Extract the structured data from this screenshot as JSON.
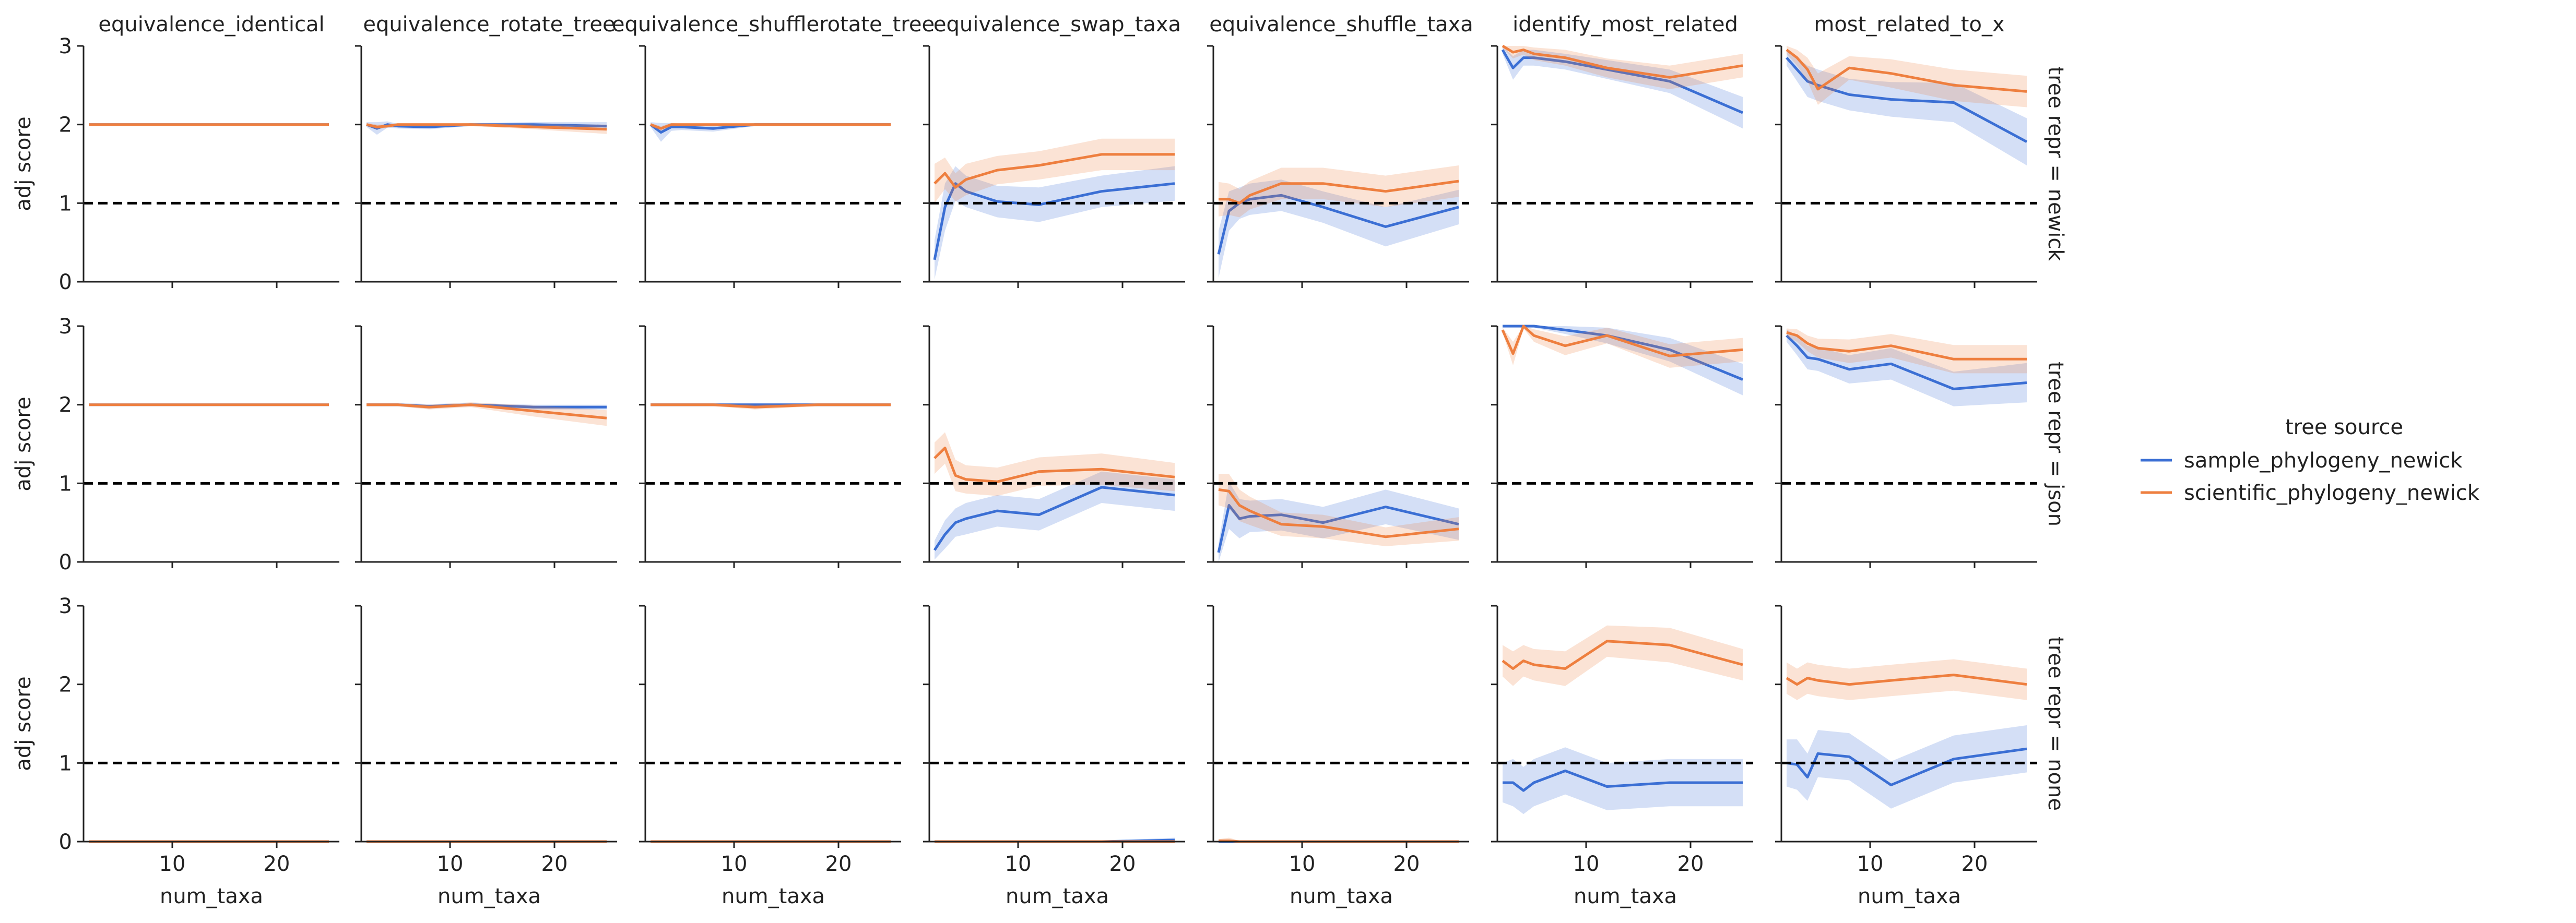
{
  "chart_data": {
    "type": "line",
    "layout": "facet-grid",
    "columns": [
      "equivalence_identical",
      "equivalence_rotate_tree",
      "equivalence_shufflerotate_tree",
      "equivalence_swap_taxa",
      "equivalence_shuffle_taxa",
      "identify_most_related",
      "most_related_to_x"
    ],
    "rows": [
      "tree repr = newick",
      "tree repr = json",
      "tree repr = none"
    ],
    "xlabel": "num_taxa",
    "ylabel": "adj score",
    "xlim": [
      1.5,
      26
    ],
    "ylim": [
      0,
      3
    ],
    "xticks": [
      10,
      20
    ],
    "yticks": [
      0,
      1,
      2,
      3
    ],
    "reference_line": {
      "y": 1,
      "style": "dashed",
      "color": "#000000"
    },
    "legend": {
      "title": "tree source",
      "position": "right",
      "entries": [
        "sample_phylogeny_newick",
        "scientific_phylogeny_newick"
      ]
    },
    "colors": {
      "sample_phylogeny_newick": "#3b6fd4",
      "scientific_phylogeny_newick": "#ee7f3f"
    },
    "grid": false,
    "x": [
      2,
      3,
      4,
      5,
      8,
      12,
      18,
      25
    ],
    "panels": [
      [
        {
          "sample": [
            2.0,
            2.0,
            2.0,
            2.0,
            2.0,
            2.0,
            2.0,
            2.0
          ],
          "sample_band": [
            0,
            0,
            0,
            0,
            0,
            0,
            0,
            0
          ],
          "scientific": [
            2.0,
            2.0,
            2.0,
            2.0,
            2.0,
            2.0,
            2.0,
            2.0
          ],
          "scientific_band": [
            0,
            0,
            0,
            0,
            0,
            0,
            0,
            0
          ]
        },
        {
          "sample": [
            2.0,
            1.95,
            2.0,
            1.98,
            1.97,
            2.0,
            2.0,
            1.98
          ],
          "sample_band": [
            0.03,
            0.08,
            0.04,
            0.03,
            0.03,
            0.02,
            0.03,
            0.05
          ],
          "scientific": [
            2.0,
            1.97,
            1.98,
            2.0,
            2.0,
            2.0,
            1.97,
            1.94
          ],
          "scientific_band": [
            0.02,
            0.03,
            0.02,
            0.02,
            0.02,
            0.02,
            0.03,
            0.06
          ]
        },
        {
          "sample": [
            2.0,
            1.9,
            1.97,
            1.97,
            1.95,
            2.0,
            2.0,
            2.0
          ],
          "sample_band": [
            0.03,
            0.12,
            0.05,
            0.04,
            0.04,
            0.02,
            0.02,
            0.02
          ],
          "scientific": [
            2.0,
            1.95,
            2.0,
            2.0,
            2.0,
            2.0,
            2.0,
            2.0
          ],
          "scientific_band": [
            0.02,
            0.03,
            0.02,
            0.02,
            0.02,
            0.02,
            0.02,
            0.02
          ]
        },
        {
          "sample": [
            0.28,
            0.95,
            1.25,
            1.15,
            1.02,
            0.98,
            1.15,
            1.25
          ],
          "sample_band": [
            0.25,
            0.3,
            0.22,
            0.2,
            0.2,
            0.22,
            0.2,
            0.22
          ],
          "scientific": [
            1.25,
            1.38,
            1.2,
            1.3,
            1.42,
            1.48,
            1.62,
            1.62
          ],
          "scientific_band": [
            0.25,
            0.2,
            0.18,
            0.2,
            0.18,
            0.18,
            0.2,
            0.2
          ]
        },
        {
          "sample": [
            0.35,
            0.9,
            1.0,
            1.05,
            1.1,
            0.95,
            0.7,
            0.95
          ],
          "sample_band": [
            0.3,
            0.25,
            0.2,
            0.2,
            0.2,
            0.2,
            0.25,
            0.22
          ],
          "scientific": [
            1.05,
            1.05,
            1.0,
            1.1,
            1.25,
            1.25,
            1.15,
            1.28
          ],
          "scientific_band": [
            0.22,
            0.2,
            0.18,
            0.18,
            0.2,
            0.2,
            0.2,
            0.2
          ]
        },
        {
          "sample": [
            2.95,
            2.72,
            2.85,
            2.85,
            2.8,
            2.7,
            2.55,
            2.15
          ],
          "sample_band": [
            0.05,
            0.15,
            0.1,
            0.1,
            0.1,
            0.12,
            0.15,
            0.2
          ],
          "scientific": [
            3.0,
            2.92,
            2.95,
            2.9,
            2.85,
            2.72,
            2.6,
            2.75
          ],
          "scientific_band": [
            0.03,
            0.08,
            0.06,
            0.08,
            0.1,
            0.12,
            0.15,
            0.15
          ]
        },
        {
          "sample": [
            2.85,
            2.7,
            2.55,
            2.5,
            2.38,
            2.32,
            2.28,
            1.78
          ],
          "sample_band": [
            0.1,
            0.15,
            0.2,
            0.2,
            0.2,
            0.22,
            0.25,
            0.3
          ],
          "scientific": [
            2.95,
            2.85,
            2.7,
            2.45,
            2.72,
            2.65,
            2.5,
            2.42
          ],
          "scientific_band": [
            0.05,
            0.1,
            0.15,
            0.2,
            0.15,
            0.18,
            0.2,
            0.2
          ]
        }
      ],
      [
        {
          "sample": [
            2.0,
            2.0,
            2.0,
            2.0,
            2.0,
            2.0,
            2.0,
            2.0
          ],
          "sample_band": [
            0,
            0,
            0,
            0,
            0,
            0,
            0,
            0
          ],
          "scientific": [
            2.0,
            2.0,
            2.0,
            2.0,
            2.0,
            2.0,
            2.0,
            2.0
          ],
          "scientific_band": [
            0,
            0,
            0,
            0,
            0,
            0,
            0,
            0
          ]
        },
        {
          "sample": [
            2.0,
            2.0,
            2.0,
            2.0,
            1.98,
            2.0,
            1.97,
            1.97
          ],
          "sample_band": [
            0.02,
            0.02,
            0.02,
            0.02,
            0.03,
            0.02,
            0.03,
            0.03
          ],
          "scientific": [
            2.0,
            2.0,
            2.0,
            2.0,
            1.97,
            2.0,
            1.92,
            1.83
          ],
          "scientific_band": [
            0.02,
            0.02,
            0.02,
            0.02,
            0.03,
            0.03,
            0.07,
            0.1
          ]
        },
        {
          "sample": [
            2.0,
            2.0,
            2.0,
            2.0,
            2.0,
            2.0,
            2.0,
            2.0
          ],
          "sample_band": [
            0.02,
            0.02,
            0.02,
            0.02,
            0.02,
            0.02,
            0.02,
            0.02
          ],
          "scientific": [
            2.0,
            2.0,
            2.0,
            2.0,
            2.0,
            1.97,
            2.0,
            2.0
          ],
          "scientific_band": [
            0.02,
            0.02,
            0.02,
            0.02,
            0.02,
            0.03,
            0.02,
            0.02
          ]
        },
        {
          "sample": [
            0.15,
            0.35,
            0.5,
            0.55,
            0.65,
            0.6,
            0.95,
            0.85
          ],
          "sample_band": [
            0.12,
            0.18,
            0.18,
            0.2,
            0.2,
            0.2,
            0.2,
            0.2
          ],
          "scientific": [
            1.32,
            1.45,
            1.1,
            1.05,
            1.02,
            1.15,
            1.18,
            1.08
          ],
          "scientific_band": [
            0.2,
            0.2,
            0.2,
            0.18,
            0.18,
            0.18,
            0.2,
            0.18
          ]
        },
        {
          "sample": [
            0.12,
            0.72,
            0.55,
            0.58,
            0.6,
            0.5,
            0.7,
            0.48
          ],
          "sample_band": [
            0.12,
            0.3,
            0.25,
            0.2,
            0.2,
            0.2,
            0.22,
            0.2
          ],
          "scientific": [
            0.92,
            0.9,
            0.72,
            0.65,
            0.48,
            0.45,
            0.32,
            0.42
          ],
          "scientific_band": [
            0.2,
            0.22,
            0.2,
            0.18,
            0.15,
            0.15,
            0.12,
            0.15
          ]
        },
        {
          "sample": [
            3.0,
            3.0,
            3.0,
            3.0,
            2.95,
            2.88,
            2.7,
            2.32
          ],
          "sample_band": [
            0.02,
            0.02,
            0.02,
            0.02,
            0.05,
            0.1,
            0.15,
            0.2
          ],
          "scientific": [
            2.95,
            2.65,
            3.0,
            2.88,
            2.75,
            2.88,
            2.62,
            2.7
          ],
          "scientific_band": [
            0.03,
            0.15,
            0.03,
            0.08,
            0.12,
            0.1,
            0.15,
            0.15
          ]
        },
        {
          "sample": [
            2.88,
            2.75,
            2.6,
            2.58,
            2.45,
            2.52,
            2.2,
            2.28
          ],
          "sample_band": [
            0.08,
            0.12,
            0.15,
            0.15,
            0.18,
            0.2,
            0.22,
            0.25
          ],
          "scientific": [
            2.92,
            2.88,
            2.78,
            2.72,
            2.68,
            2.75,
            2.58,
            2.58
          ],
          "scientific_band": [
            0.05,
            0.08,
            0.1,
            0.12,
            0.15,
            0.15,
            0.18,
            0.18
          ]
        }
      ],
      [
        {
          "sample": [
            0,
            0,
            0,
            0,
            0,
            0,
            0,
            0
          ],
          "sample_band": [
            0,
            0,
            0,
            0,
            0,
            0,
            0,
            0
          ],
          "scientific": [
            0,
            0,
            0,
            0,
            0,
            0,
            0,
            0
          ],
          "scientific_band": [
            0,
            0,
            0,
            0,
            0,
            0,
            0,
            0
          ]
        },
        {
          "sample": [
            0,
            0,
            0,
            0,
            0,
            0,
            0,
            0
          ],
          "sample_band": [
            0,
            0,
            0,
            0,
            0,
            0,
            0,
            0
          ],
          "scientific": [
            0,
            0,
            0,
            0,
            0,
            0,
            0,
            0
          ],
          "scientific_band": [
            0,
            0,
            0,
            0,
            0,
            0,
            0,
            0
          ]
        },
        {
          "sample": [
            0,
            0,
            0,
            0,
            0,
            0,
            0,
            0
          ],
          "sample_band": [
            0,
            0,
            0,
            0,
            0,
            0,
            0,
            0
          ],
          "scientific": [
            0,
            0,
            0,
            0,
            0,
            0,
            0,
            0
          ],
          "scientific_band": [
            0,
            0,
            0,
            0,
            0,
            0,
            0,
            0
          ]
        },
        {
          "sample": [
            0,
            0,
            0,
            0,
            0,
            0,
            0,
            0.02
          ],
          "sample_band": [
            0,
            0,
            0,
            0,
            0,
            0,
            0.01,
            0.03
          ],
          "scientific": [
            0,
            0,
            0,
            0,
            0,
            0,
            0,
            0
          ],
          "scientific_band": [
            0,
            0,
            0,
            0,
            0,
            0,
            0,
            0
          ]
        },
        {
          "sample": [
            0,
            0,
            0,
            0,
            0,
            0,
            0,
            0
          ],
          "sample_band": [
            0,
            0,
            0,
            0,
            0,
            0,
            0,
            0
          ],
          "scientific": [
            0.01,
            0.01,
            0,
            0,
            0,
            0,
            0,
            0
          ],
          "scientific_band": [
            0.02,
            0.04,
            0.01,
            0,
            0,
            0,
            0,
            0
          ]
        },
        {
          "sample": [
            0.75,
            0.75,
            0.65,
            0.75,
            0.9,
            0.7,
            0.75,
            0.75
          ],
          "sample_band": [
            0.25,
            0.3,
            0.3,
            0.3,
            0.3,
            0.3,
            0.3,
            0.3
          ],
          "scientific": [
            2.3,
            2.2,
            2.3,
            2.25,
            2.2,
            2.55,
            2.5,
            2.25
          ],
          "scientific_band": [
            0.2,
            0.22,
            0.2,
            0.2,
            0.22,
            0.2,
            0.22,
            0.2
          ]
        },
        {
          "sample": [
            1.0,
            0.98,
            0.82,
            1.12,
            1.08,
            0.72,
            1.05,
            1.18
          ],
          "sample_band": [
            0.3,
            0.32,
            0.3,
            0.3,
            0.3,
            0.3,
            0.3,
            0.3
          ],
          "scientific": [
            2.08,
            2.0,
            2.08,
            2.05,
            2.0,
            2.05,
            2.12,
            2.0
          ],
          "scientific_band": [
            0.2,
            0.2,
            0.2,
            0.2,
            0.2,
            0.2,
            0.2,
            0.2
          ]
        }
      ]
    ]
  }
}
